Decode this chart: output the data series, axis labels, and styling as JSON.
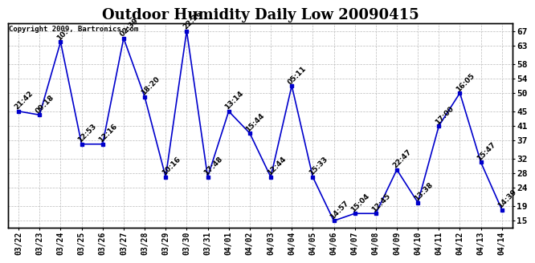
{
  "title": "Outdoor Humidity Daily Low 20090415",
  "copyright": "Copyright 2009, Bartronics.com",
  "line_color": "#0000cc",
  "marker_color": "#0000cc",
  "bg_color": "#ffffff",
  "grid_color": "#bbbbbb",
  "dates": [
    "03/22",
    "03/23",
    "03/24",
    "03/25",
    "03/26",
    "03/27",
    "03/28",
    "03/29",
    "03/30",
    "03/31",
    "04/01",
    "04/02",
    "04/03",
    "04/04",
    "04/05",
    "04/06",
    "04/07",
    "04/08",
    "04/09",
    "04/10",
    "04/11",
    "04/12",
    "04/13",
    "04/14"
  ],
  "values": [
    45,
    44,
    64,
    36,
    36,
    65,
    49,
    27,
    67,
    27,
    45,
    39,
    27,
    52,
    27,
    15,
    17,
    17,
    29,
    20,
    41,
    50,
    31,
    18
  ],
  "labels": [
    "21:42",
    "09:18",
    "10:",
    "12:53",
    "12:16",
    "02:39",
    "18:20",
    "10:16",
    "22:26",
    "17:48",
    "13:14",
    "15:44",
    "12:44",
    "05:11",
    "15:33",
    "14:57",
    "15:04",
    "12:45",
    "22:47",
    "13:38",
    "17:00",
    "16:05",
    "15:47",
    "14:39"
  ],
  "yticks": [
    15,
    19,
    24,
    28,
    32,
    37,
    41,
    45,
    50,
    54,
    58,
    63,
    67
  ],
  "ylim": [
    13,
    69
  ],
  "xlim": [
    -0.5,
    23.5
  ],
  "title_fontsize": 13,
  "label_fontsize": 6.5,
  "copyright_fontsize": 6.5,
  "tick_fontsize": 8,
  "xtick_fontsize": 7
}
